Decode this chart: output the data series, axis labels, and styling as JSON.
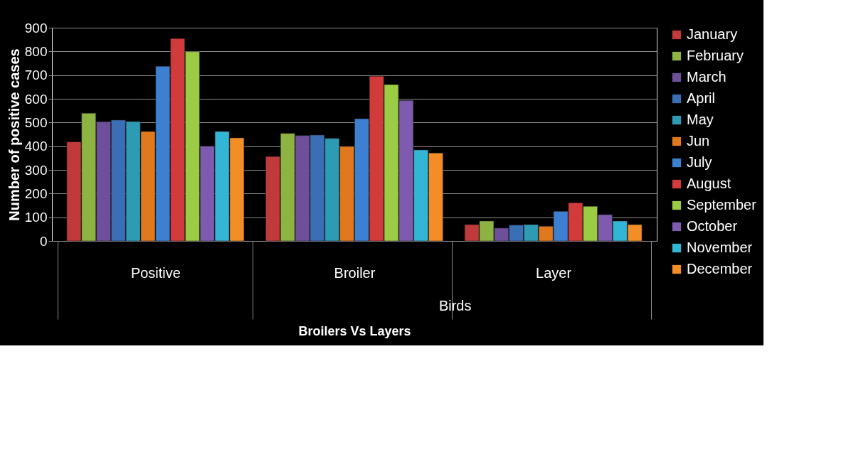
{
  "chart_data": {
    "type": "bar",
    "xlabel": "Broilers Vs Layers",
    "ylabel": "Number of positive cases",
    "categories": [
      "Positive",
      "Broiler",
      "Layer"
    ],
    "series": [
      {
        "name": "January",
        "color": "#c0393b",
        "values": [
          418,
          356,
          69
        ]
      },
      {
        "name": "February",
        "color": "#8db343",
        "values": [
          539,
          454,
          84
        ]
      },
      {
        "name": "March",
        "color": "#6e4f9a",
        "values": [
          503,
          445,
          54
        ]
      },
      {
        "name": "April",
        "color": "#3a6eb5",
        "values": [
          510,
          447,
          67
        ]
      },
      {
        "name": "May",
        "color": "#2e9bb5",
        "values": [
          504,
          433,
          69
        ]
      },
      {
        "name": "Jun",
        "color": "#e0781e",
        "values": [
          462,
          399,
          62
        ]
      },
      {
        "name": "July",
        "color": "#3d7fd0",
        "values": [
          737,
          516,
          125
        ]
      },
      {
        "name": "August",
        "color": "#d13b3b",
        "values": [
          854,
          695,
          161
        ]
      },
      {
        "name": "September",
        "color": "#9ccc44",
        "values": [
          799,
          660,
          146
        ]
      },
      {
        "name": "October",
        "color": "#7f5bb0",
        "values": [
          400,
          593,
          111
        ]
      },
      {
        "name": "November",
        "color": "#33b5d5",
        "values": [
          462,
          384,
          84
        ]
      },
      {
        "name": "December",
        "color": "#f28e25",
        "values": [
          435,
          371,
          69
        ]
      }
    ],
    "annotations": [
      "Birds"
    ],
    "ylim": [
      0,
      900
    ],
    "yticks": [
      0,
      100,
      200,
      300,
      400,
      500,
      600,
      700,
      800,
      900
    ],
    "grid": "y",
    "legend": "right"
  }
}
